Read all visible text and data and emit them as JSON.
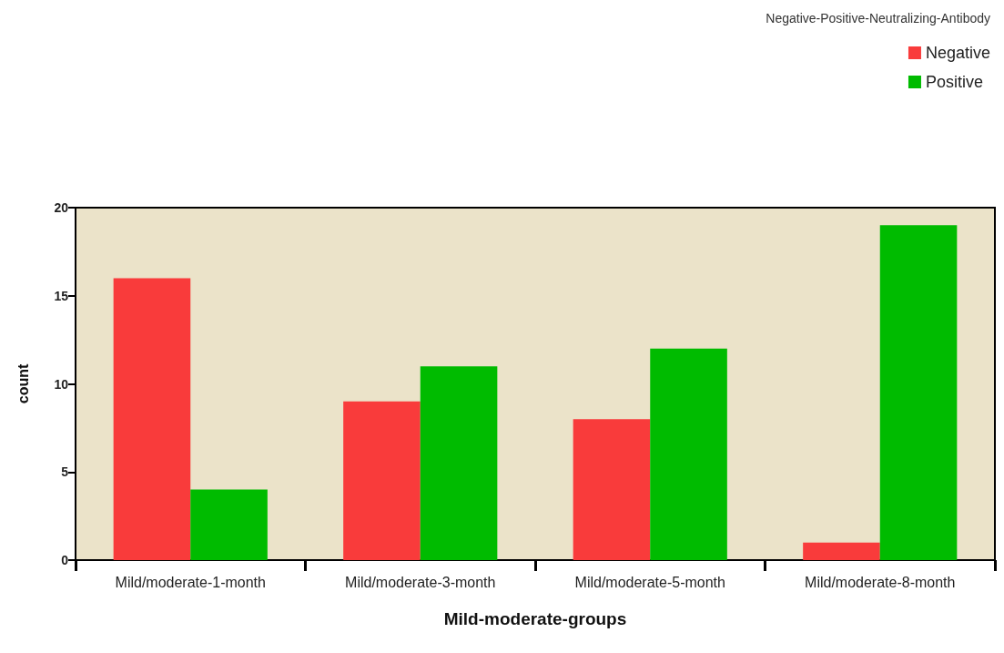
{
  "chart_data": {
    "type": "bar",
    "xlabel": "Mild-moderate-groups",
    "ylabel": "count",
    "legend_title": "Negative-Positive-Neutralizing-Antibody",
    "categories": [
      "Mild/moderate-1-month",
      "Mild/moderate-3-month",
      "Mild/moderate-5-month",
      "Mild/moderate-8-month"
    ],
    "series": [
      {
        "name": "Negative",
        "color": "#f93b3b",
        "values": [
          16,
          9,
          8,
          1
        ]
      },
      {
        "name": "Positive",
        "color": "#00bb00",
        "values": [
          4,
          11,
          12,
          19
        ]
      }
    ],
    "ylim": [
      0,
      20
    ],
    "yticks": [
      0,
      5,
      10,
      15,
      20
    ],
    "grid": false,
    "legend": "top right"
  }
}
